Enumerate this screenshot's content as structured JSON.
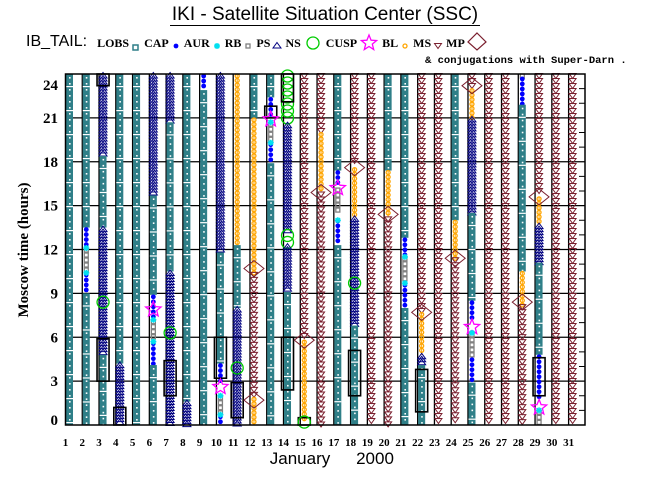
{
  "title": "IKI - Satellite Situation Center (SSC)",
  "legend": {
    "prefix": "IB_TAIL:",
    "items": [
      {
        "code": "LOBS",
        "label": "LOBS",
        "color": "#2f7f88"
      },
      {
        "code": "CAP",
        "label": "CAP",
        "color": "#0000ff"
      },
      {
        "code": "AUR",
        "label": "AUR",
        "color": "#00e0f0"
      },
      {
        "code": "RB",
        "label": "RB",
        "color": "#808080"
      },
      {
        "code": "PS",
        "label": "PS",
        "color": "#000080"
      },
      {
        "code": "NS",
        "label": "NS",
        "color": "#00cc00"
      },
      {
        "code": "CUSP",
        "label": "CUSP",
        "color": "#ff00ff"
      },
      {
        "code": "BL",
        "label": "BL",
        "color": "#ffa500"
      },
      {
        "code": "MS",
        "label": "MS",
        "color": "#7a1f2e"
      },
      {
        "code": "MP",
        "label": "MP",
        "color": "#7a1f2e"
      }
    ],
    "conjugation_note": "& conjugations with Super-Darn ."
  },
  "chart_data": {
    "type": "scatter",
    "title": "IKI - Satellite Situation Center (SSC)",
    "ylabel": "Moscow time (hours)",
    "xlabel": "January",
    "xlabel_year": "2000",
    "ylim": [
      0,
      24
    ],
    "yticks": [
      0,
      3,
      6,
      9,
      12,
      15,
      18,
      21,
      24
    ],
    "xticks": [
      1,
      2,
      3,
      4,
      5,
      6,
      7,
      8,
      9,
      10,
      11,
      12,
      13,
      14,
      15,
      16,
      17,
      18,
      19,
      20,
      21,
      22,
      23,
      24,
      25,
      26,
      27,
      28,
      29,
      30,
      31
    ],
    "grid": true,
    "days": [
      {
        "day": 1,
        "segments": [
          [
            "LOBS",
            0,
            24
          ]
        ]
      },
      {
        "day": 2,
        "segments": [
          [
            "LOBS",
            13.5,
            24
          ],
          [
            "CAP",
            12.2,
            13.5
          ],
          [
            "RB",
            10.4,
            12.1
          ],
          [
            "CAP",
            9,
            10.4
          ],
          [
            "LOBS",
            0,
            9
          ]
        ],
        "markers": [
          [
            "AUR",
            12.1
          ],
          [
            "AUR",
            10.4
          ]
        ]
      },
      {
        "day": 3,
        "segments": [
          [
            "PS",
            18.4,
            24
          ],
          [
            "LOBS",
            13.5,
            18.4
          ],
          [
            "PS",
            4.8,
            13.5
          ],
          [
            "LOBS",
            0,
            4.8
          ]
        ],
        "markers": [
          [
            "NS",
            8.4
          ]
        ],
        "conjunctions": [
          [
            23.2,
            24
          ],
          [
            3,
            5.9
          ]
        ]
      },
      {
        "day": 4,
        "segments": [
          [
            "LOBS",
            4.2,
            24
          ],
          [
            "PS",
            0,
            4.2
          ]
        ],
        "conjunctions": [
          [
            0,
            1.2
          ]
        ]
      },
      {
        "day": 5,
        "segments": [
          [
            "LOBS",
            0,
            24
          ]
        ]
      },
      {
        "day": 6,
        "segments": [
          [
            "PS",
            15.7,
            24
          ],
          [
            "LOBS",
            8.9,
            15.7
          ],
          [
            "CAP",
            7.3,
            8.9
          ],
          [
            "RB",
            5.8,
            7.2
          ],
          [
            "CAP",
            4.1,
            5.7
          ],
          [
            "LOBS",
            0,
            4.1
          ]
        ],
        "markers": [
          [
            "CUSP",
            7.9
          ],
          [
            "AUR",
            7.2
          ],
          [
            "AUR",
            5.7
          ]
        ]
      },
      {
        "day": 7,
        "segments": [
          [
            "PS",
            20.7,
            24
          ],
          [
            "LOBS",
            10.5,
            20.7
          ],
          [
            "PS",
            0,
            10.5
          ]
        ],
        "markers": [
          [
            "NS",
            6.3
          ]
        ],
        "conjunctions": [
          [
            2,
            4.4
          ]
        ]
      },
      {
        "day": 8,
        "segments": [
          [
            "LOBS",
            1.6,
            24
          ],
          [
            "PS",
            0,
            1.6
          ]
        ]
      },
      {
        "day": 9,
        "segments": [
          [
            "CAP",
            22.9,
            24
          ],
          [
            "LOBS",
            0,
            22.9
          ]
        ]
      },
      {
        "day": 10,
        "segments": [
          [
            "PS",
            11.8,
            24
          ],
          [
            "LOBS",
            4.2,
            11.8
          ],
          [
            "CAP",
            2.9,
            4.2
          ],
          [
            "RB",
            0.7,
            2
          ],
          [
            "CAP",
            0.2,
            0.7
          ]
        ],
        "markers": [
          [
            "CUSP",
            2.6
          ],
          [
            "AUR",
            2
          ],
          [
            "AUR",
            0.7
          ]
        ],
        "conjunctions": [
          [
            3.2,
            6
          ]
        ]
      },
      {
        "day": 11,
        "segments": [
          [
            "BL",
            12.3,
            24
          ],
          [
            "LOBS",
            8,
            12.3
          ],
          [
            "PS",
            0,
            8
          ]
        ],
        "markers": [
          [
            "NS",
            3.9
          ]
        ],
        "conjunctions": [
          [
            0.5,
            2.9
          ]
        ]
      },
      {
        "day": 12,
        "segments": [
          [
            "LOBS",
            21,
            24
          ],
          [
            "BL",
            10.4,
            21
          ],
          [
            "MS",
            1.9,
            10.4
          ],
          [
            "BL",
            0,
            1.9
          ]
        ],
        "markers": [
          [
            "MP",
            10.7
          ],
          [
            "MP",
            1.7
          ]
        ]
      },
      {
        "day": 13,
        "segments": [
          [
            "LOBS",
            22.4,
            24
          ],
          [
            "CAP",
            21.2,
            22.4
          ],
          [
            "RB",
            19.3,
            20.7
          ],
          [
            "CAP",
            17.9,
            19.3
          ],
          [
            "LOBS",
            0,
            17.9
          ]
        ],
        "markers": [
          [
            "CUSP",
            20.9
          ],
          [
            "AUR",
            20.7
          ],
          [
            "AUR",
            19.3
          ]
        ],
        "conjunctions": [
          [
            21,
            21.8
          ]
        ]
      },
      {
        "day": 14,
        "segments": [
          [
            "NS",
            20.6,
            24
          ],
          [
            "PS",
            13.1,
            20.6
          ],
          [
            "NS",
            12.3,
            13.1
          ],
          [
            "PS",
            9.1,
            12.3
          ],
          [
            "LOBS",
            0,
            9.1
          ]
        ],
        "conjunctions": [
          [
            22.1,
            24
          ],
          [
            2.4,
            6
          ]
        ]
      },
      {
        "day": 15,
        "segments": [
          [
            "MS",
            5.8,
            24
          ],
          [
            "BL",
            0.3,
            5.8
          ]
        ],
        "markers": [
          [
            "MP",
            5.8
          ],
          [
            "NS",
            0.2
          ]
        ],
        "conjunctions": [
          [
            0,
            0.5
          ]
        ]
      },
      {
        "day": 16,
        "segments": [
          [
            "MS",
            20,
            24
          ],
          [
            "BL",
            15.9,
            20
          ],
          [
            "MS",
            0,
            15.9
          ]
        ],
        "markers": [
          [
            "MP",
            15.9
          ]
        ]
      },
      {
        "day": 17,
        "segments": [
          [
            "LOBS",
            17.4,
            24
          ],
          [
            "CAP",
            16.4,
            17.4
          ],
          [
            "RB",
            14.5,
            16.2
          ],
          [
            "CAP",
            12.3,
            14.1
          ],
          [
            "LOBS",
            0,
            12.3
          ]
        ],
        "markers": [
          [
            "CUSP",
            16.2
          ],
          [
            "AUR",
            14.0
          ]
        ]
      },
      {
        "day": 18,
        "segments": [
          [
            "MS",
            18,
            24
          ],
          [
            "BL",
            14.2,
            17.6
          ],
          [
            "PS",
            6.8,
            14.2
          ],
          [
            "LOBS",
            0,
            6.8
          ]
        ],
        "markers": [
          [
            "MP",
            17.6
          ],
          [
            "NS",
            9.7
          ]
        ],
        "conjunctions": [
          [
            2,
            5.1
          ]
        ]
      },
      {
        "day": 19,
        "segments": [
          [
            "MS",
            0,
            24
          ]
        ]
      },
      {
        "day": 20,
        "segments": [
          [
            "LOBS",
            17.4,
            24
          ],
          [
            "BL",
            14.2,
            17.4
          ],
          [
            "MS",
            0,
            14.2
          ]
        ],
        "markers": [
          [
            "MP",
            14.4
          ]
        ]
      },
      {
        "day": 21,
        "segments": [
          [
            "LOBS",
            12.8,
            24
          ],
          [
            "CAP",
            11.5,
            12.8
          ],
          [
            "RB",
            9.7,
            11.5
          ],
          [
            "CAP",
            8,
            9.7
          ],
          [
            "LOBS",
            0,
            8
          ]
        ],
        "markers": [
          [
            "AUR",
            11.5
          ],
          [
            "AUR",
            9.7
          ]
        ]
      },
      {
        "day": 22,
        "segments": [
          [
            "MS",
            7.7,
            24
          ],
          [
            "BL",
            4.8,
            7.7
          ],
          [
            "PS",
            4.1,
            4.8
          ],
          [
            "LOBS",
            0,
            4.1
          ]
        ],
        "markers": [
          [
            "MP",
            7.7
          ]
        ],
        "conjunctions": [
          [
            0.9,
            3.8
          ]
        ]
      },
      {
        "day": 23,
        "segments": [
          [
            "MS",
            0,
            24
          ]
        ]
      },
      {
        "day": 24,
        "segments": [
          [
            "LOBS",
            14,
            24
          ],
          [
            "BL",
            11.4,
            14
          ],
          [
            "MS",
            0,
            11.4
          ]
        ],
        "markers": [
          [
            "MP",
            11.4
          ]
        ]
      },
      {
        "day": 25,
        "segments": [
          [
            "MS",
            23,
            24
          ],
          [
            "BL",
            21,
            23
          ],
          [
            "PS",
            14.5,
            21
          ],
          [
            "LOBS",
            8.5,
            14.5
          ],
          [
            "CAP",
            7,
            8.5
          ],
          [
            "RB",
            4.6,
            6.3
          ],
          [
            "CAP",
            2.9,
            4.6
          ],
          [
            "LOBS",
            0,
            2.9
          ]
        ],
        "markers": [
          [
            "MP",
            23.2
          ],
          [
            "CUSP",
            6.7
          ],
          [
            "AUR",
            6.3
          ]
        ]
      },
      {
        "day": 26,
        "segments": [
          [
            "MS",
            0,
            24
          ]
        ]
      },
      {
        "day": 27,
        "segments": [
          [
            "MS",
            0,
            24
          ]
        ]
      },
      {
        "day": 28,
        "segments": [
          [
            "RB",
            23.8,
            24
          ],
          [
            "CAP",
            21.9,
            23.8
          ],
          [
            "LOBS",
            10.5,
            21.9
          ],
          [
            "BL",
            8.2,
            10.5
          ],
          [
            "MS",
            0,
            8.2
          ]
        ],
        "markers": [
          [
            "MP",
            8.4
          ]
        ]
      },
      {
        "day": 29,
        "segments": [
          [
            "MS",
            16,
            24
          ],
          [
            "BL",
            13.7,
            15.6
          ],
          [
            "PS",
            11.1,
            13.7
          ],
          [
            "LOBS",
            4.8,
            11.1
          ],
          [
            "CAP",
            1.6,
            4.8
          ],
          [
            "RB",
            0,
            1
          ]
        ],
        "markers": [
          [
            "MP",
            15.6
          ],
          [
            "CUSP",
            1.2
          ],
          [
            "AUR",
            1.0
          ]
        ],
        "conjunctions": [
          [
            2,
            4.6
          ]
        ]
      },
      {
        "day": 30,
        "segments": [
          [
            "MS",
            0,
            24
          ]
        ]
      },
      {
        "day": 31,
        "segments": [
          [
            "MS",
            0,
            24
          ]
        ]
      }
    ]
  }
}
